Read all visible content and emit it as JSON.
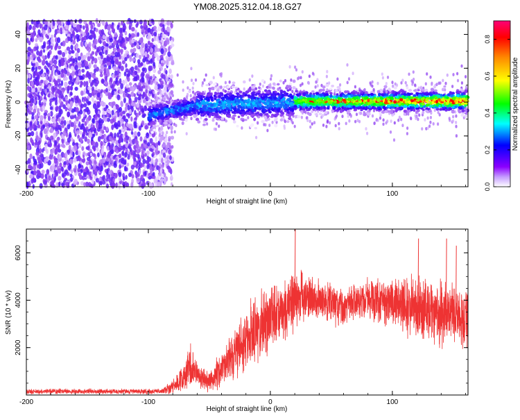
{
  "page_title": "YM08.2025.312.04.18.G27",
  "chart_data": [
    {
      "type": "heatmap",
      "title": "YM08.2025.312.04.18.G27",
      "xlabel": "Height of straight line (km)",
      "ylabel": "Frequency (Hz)",
      "xlim": [
        -200,
        162
      ],
      "ylim": [
        -50,
        48
      ],
      "x_ticks": [
        -200,
        -100,
        0,
        100
      ],
      "x_tick_labels": [
        "-200",
        "-100",
        "0",
        "100"
      ],
      "y_ticks": [
        -40,
        -20,
        0,
        20,
        40
      ],
      "y_tick_labels": [
        "-40",
        "-20",
        "0",
        "20",
        "40"
      ],
      "colorbar": {
        "label": "Normalized spectral amplitude",
        "range": [
          0.0,
          0.9
        ],
        "ticks": [
          0.0,
          0.2,
          0.4,
          0.6,
          0.8
        ],
        "tick_labels": [
          "0.0",
          "0.2",
          "0.4",
          "0.6",
          "0.8"
        ],
        "colors": [
          "#ffffff",
          "#8b00ff",
          "#0000ff",
          "#00ffff",
          "#00ff00",
          "#ffff00",
          "#ff0000",
          "#ff00aa"
        ]
      },
      "regions": [
        {
          "name": "noise",
          "x_range": [
            -200,
            -80
          ],
          "freq_range": [
            -50,
            48
          ],
          "amplitude": 0.1
        },
        {
          "name": "signal-onset",
          "x_range": [
            -100,
            20
          ],
          "center_freq": 0,
          "width_hz": 18,
          "amplitude": 0.3
        },
        {
          "name": "signal-strong",
          "x_range": [
            20,
            162
          ],
          "center_freq": 0,
          "width_hz": 12,
          "amplitude": 0.75
        }
      ]
    },
    {
      "type": "line",
      "xlabel": "Height of straight line (km)",
      "ylabel": "SNR (10 * v/v)",
      "xlim": [
        -200,
        162
      ],
      "ylim": [
        0,
        7000
      ],
      "x_ticks": [
        -200,
        -100,
        0,
        100
      ],
      "x_tick_labels": [
        "-200",
        "-100",
        "0",
        "100"
      ],
      "y_ticks": [
        2000,
        4000,
        6000
      ],
      "y_tick_labels": [
        "2000",
        "4000",
        "6000"
      ],
      "color": "#ee3333",
      "series": [
        {
          "name": "SNR",
          "envelope": [
            {
              "x": -200,
              "mean": 150,
              "spread": 100
            },
            {
              "x": -150,
              "mean": 150,
              "spread": 100
            },
            {
              "x": -90,
              "mean": 150,
              "spread": 100
            },
            {
              "x": -78,
              "mean": 400,
              "spread": 300
            },
            {
              "x": -65,
              "mean": 1200,
              "spread": 800
            },
            {
              "x": -60,
              "mean": 900,
              "spread": 500
            },
            {
              "x": -50,
              "mean": 500,
              "spread": 400
            },
            {
              "x": -40,
              "mean": 1200,
              "spread": 700
            },
            {
              "x": -30,
              "mean": 1700,
              "spread": 1000
            },
            {
              "x": -20,
              "mean": 2300,
              "spread": 1200
            },
            {
              "x": -10,
              "mean": 2800,
              "spread": 1300
            },
            {
              "x": 0,
              "mean": 3200,
              "spread": 1300
            },
            {
              "x": 10,
              "mean": 3500,
              "spread": 1200
            },
            {
              "x": 20,
              "mean": 4000,
              "spread": 1200
            },
            {
              "x": 30,
              "mean": 4100,
              "spread": 900
            },
            {
              "x": 40,
              "mean": 4050,
              "spread": 800
            },
            {
              "x": 50,
              "mean": 3800,
              "spread": 800
            },
            {
              "x": 60,
              "mean": 3700,
              "spread": 700
            },
            {
              "x": 70,
              "mean": 3850,
              "spread": 700
            },
            {
              "x": 80,
              "mean": 4000,
              "spread": 800
            },
            {
              "x": 90,
              "mean": 3950,
              "spread": 900
            },
            {
              "x": 100,
              "mean": 3900,
              "spread": 1000
            },
            {
              "x": 110,
              "mean": 3800,
              "spread": 1100
            },
            {
              "x": 120,
              "mean": 3700,
              "spread": 1200
            },
            {
              "x": 130,
              "mean": 3600,
              "spread": 1200
            },
            {
              "x": 140,
              "mean": 3400,
              "spread": 1200
            },
            {
              "x": 150,
              "mean": 3300,
              "spread": 1200
            },
            {
              "x": 162,
              "mean": 3250,
              "spread": 1200
            }
          ],
          "peaks": [
            {
              "x": 20,
              "value": 7000
            },
            {
              "x": 121,
              "value": 6600
            },
            {
              "x": 144,
              "value": 6600
            },
            {
              "x": 152,
              "value": 6300
            }
          ]
        }
      ]
    }
  ]
}
